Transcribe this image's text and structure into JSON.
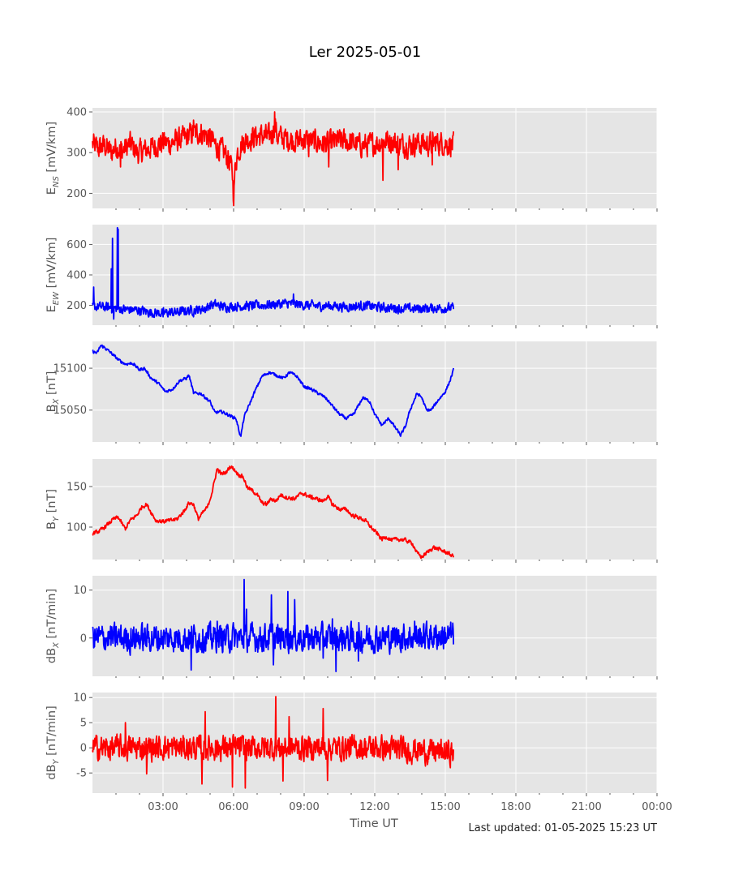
{
  "chart_data": {
    "type": "line",
    "title": "Ler 2025-05-01",
    "xlabel": "Time UT",
    "footer": "Last updated: 01-05-2025 15:23 UT",
    "x_range": [
      0,
      24
    ],
    "x_ticks": [
      {
        "h": 3,
        "label": "03:00"
      },
      {
        "h": 6,
        "label": "06:00"
      },
      {
        "h": 9,
        "label": "09:00"
      },
      {
        "h": 12,
        "label": "12:00"
      },
      {
        "h": 15,
        "label": "15:00"
      },
      {
        "h": 18,
        "label": "18:00"
      },
      {
        "h": 21,
        "label": "21:00"
      },
      {
        "h": 24,
        "label": "00:00"
      }
    ],
    "minor_ticks": [
      1,
      2,
      4,
      5,
      7,
      8,
      10,
      11,
      13,
      14,
      16,
      17,
      19,
      20,
      22,
      23
    ],
    "grid": true,
    "panels": [
      {
        "ylabel_main": "E",
        "ylabel_sub": "NS",
        "ylabel_unit": " [mV/km]",
        "color": "#ff0000",
        "ylim": [
          163,
          410
        ],
        "yticks": [
          200,
          300,
          400
        ],
        "points": [
          [
            0,
            320
          ],
          [
            0.3,
            310
          ],
          [
            0.5,
            318
          ],
          [
            0.8,
            300
          ],
          [
            1.0,
            315
          ],
          [
            1.3,
            305
          ],
          [
            1.6,
            322
          ],
          [
            1.9,
            300
          ],
          [
            2.2,
            305
          ],
          [
            2.6,
            315
          ],
          [
            3.0,
            325
          ],
          [
            3.3,
            322
          ],
          [
            3.6,
            330
          ],
          [
            3.9,
            335
          ],
          [
            4.2,
            345
          ],
          [
            4.5,
            350
          ],
          [
            4.8,
            345
          ],
          [
            5.0,
            335
          ],
          [
            5.2,
            320
          ],
          [
            5.4,
            310
          ],
          [
            5.6,
            300
          ],
          [
            5.8,
            285
          ],
          [
            5.95,
            250
          ],
          [
            6.0,
            185
          ],
          [
            6.05,
            250
          ],
          [
            6.15,
            300
          ],
          [
            6.4,
            325
          ],
          [
            6.8,
            338
          ],
          [
            7.2,
            342
          ],
          [
            7.5,
            338
          ],
          [
            7.65,
            345
          ],
          [
            7.75,
            375
          ],
          [
            7.85,
            340
          ],
          [
            8.2,
            335
          ],
          [
            8.6,
            330
          ],
          [
            9.0,
            332
          ],
          [
            9.4,
            328
          ],
          [
            9.8,
            322
          ],
          [
            10.2,
            325
          ],
          [
            10.6,
            330
          ],
          [
            11.0,
            325
          ],
          [
            11.4,
            318
          ],
          [
            11.8,
            320
          ],
          [
            12.2,
            325
          ],
          [
            12.6,
            330
          ],
          [
            13.0,
            322
          ],
          [
            13.4,
            318
          ],
          [
            13.8,
            324
          ],
          [
            14.2,
            320
          ],
          [
            14.6,
            325
          ],
          [
            15.0,
            322
          ],
          [
            15.35,
            320
          ]
        ],
        "noise": 26,
        "spikes": [
          [
            7.75,
            400
          ],
          [
            6.0,
            170
          ],
          [
            12.35,
            232
          ],
          [
            10.05,
            265
          ],
          [
            13.0,
            258
          ],
          [
            1.2,
            265
          ],
          [
            5.75,
            262
          ],
          [
            4.3,
            380
          ],
          [
            14.45,
            270
          ],
          [
            9.2,
            290
          ]
        ]
      },
      {
        "ylabel_main": "E",
        "ylabel_sub": "EW",
        "ylabel_unit": " [mV/km]",
        "color": "#0000ff",
        "ylim": [
          70,
          730
        ],
        "yticks": [
          200,
          400,
          600
        ],
        "points": [
          [
            0,
            190
          ],
          [
            0.4,
            190
          ],
          [
            0.8,
            185
          ],
          [
            1.0,
            180
          ],
          [
            1.3,
            175
          ],
          [
            1.6,
            172
          ],
          [
            2.0,
            168
          ],
          [
            2.4,
            155
          ],
          [
            2.8,
            150
          ],
          [
            3.2,
            152
          ],
          [
            3.6,
            155
          ],
          [
            4.0,
            165
          ],
          [
            4.4,
            170
          ],
          [
            4.8,
            180
          ],
          [
            5.0,
            200
          ],
          [
            5.2,
            205
          ],
          [
            5.6,
            190
          ],
          [
            6.0,
            195
          ],
          [
            6.4,
            195
          ],
          [
            6.8,
            198
          ],
          [
            7.2,
            200
          ],
          [
            7.6,
            205
          ],
          [
            8.0,
            210
          ],
          [
            8.4,
            212
          ],
          [
            8.8,
            205
          ],
          [
            9.2,
            200
          ],
          [
            9.6,
            195
          ],
          [
            10.0,
            198
          ],
          [
            10.4,
            195
          ],
          [
            10.8,
            190
          ],
          [
            11.2,
            195
          ],
          [
            11.6,
            198
          ],
          [
            12.0,
            190
          ],
          [
            12.4,
            185
          ],
          [
            12.8,
            182
          ],
          [
            13.2,
            180
          ],
          [
            13.6,
            178
          ],
          [
            14.0,
            180
          ],
          [
            14.4,
            182
          ],
          [
            14.8,
            182
          ],
          [
            15.35,
            183
          ]
        ],
        "noise": 28,
        "spikes": [
          [
            0.05,
            320
          ],
          [
            0.8,
            440
          ],
          [
            0.85,
            640
          ],
          [
            0.9,
            110
          ],
          [
            1.05,
            710
          ],
          [
            1.1,
            700
          ],
          [
            4.3,
            125
          ],
          [
            8.55,
            275
          ],
          [
            3.0,
            125
          ]
        ]
      },
      {
        "ylabel_main": "B",
        "ylabel_sub": "X",
        "ylabel_unit": " [nT]",
        "color": "#0000ff",
        "ylim": [
          15012,
          15132
        ],
        "yticks": [
          15050,
          15100
        ],
        "points": [
          [
            0,
            15120
          ],
          [
            0.2,
            15118
          ],
          [
            0.35,
            15127
          ],
          [
            0.5,
            15125
          ],
          [
            0.8,
            15118
          ],
          [
            1.1,
            15110
          ],
          [
            1.4,
            15105
          ],
          [
            1.7,
            15106
          ],
          [
            2.0,
            15098
          ],
          [
            2.2,
            15100
          ],
          [
            2.5,
            15088
          ],
          [
            2.8,
            15082
          ],
          [
            3.1,
            15072
          ],
          [
            3.4,
            15075
          ],
          [
            3.7,
            15085
          ],
          [
            4.0,
            15088
          ],
          [
            4.1,
            15092
          ],
          [
            4.3,
            15070
          ],
          [
            4.6,
            15070
          ],
          [
            5.0,
            15060
          ],
          [
            5.2,
            15047
          ],
          [
            5.5,
            15048
          ],
          [
            5.8,
            15044
          ],
          [
            6.1,
            15040
          ],
          [
            6.3,
            15018
          ],
          [
            6.45,
            15042
          ],
          [
            6.6,
            15052
          ],
          [
            6.9,
            15072
          ],
          [
            7.2,
            15090
          ],
          [
            7.5,
            15095
          ],
          [
            7.8,
            15092
          ],
          [
            8.1,
            15088
          ],
          [
            8.4,
            15095
          ],
          [
            8.7,
            15090
          ],
          [
            9.0,
            15078
          ],
          [
            9.3,
            15075
          ],
          [
            9.6,
            15070
          ],
          [
            9.9,
            15065
          ],
          [
            10.2,
            15055
          ],
          [
            10.5,
            15045
          ],
          [
            10.8,
            15040
          ],
          [
            11.1,
            15045
          ],
          [
            11.3,
            15055
          ],
          [
            11.5,
            15065
          ],
          [
            11.8,
            15060
          ],
          [
            12.0,
            15045
          ],
          [
            12.3,
            15032
          ],
          [
            12.6,
            15040
          ],
          [
            12.9,
            15028
          ],
          [
            13.1,
            15020
          ],
          [
            13.3,
            15030
          ],
          [
            13.5,
            15050
          ],
          [
            13.8,
            15070
          ],
          [
            14.0,
            15065
          ],
          [
            14.2,
            15050
          ],
          [
            14.4,
            15050
          ],
          [
            14.7,
            15062
          ],
          [
            15.0,
            15072
          ],
          [
            15.2,
            15085
          ],
          [
            15.35,
            15098
          ]
        ],
        "noise": 1.6,
        "spikes": []
      },
      {
        "ylabel_main": "B",
        "ylabel_sub": "Y",
        "ylabel_unit": " [nT]",
        "color": "#ff0000",
        "ylim": [
          60,
          184
        ],
        "yticks": [
          100,
          150
        ],
        "points": [
          [
            0,
            92
          ],
          [
            0.3,
            95
          ],
          [
            0.6,
            102
          ],
          [
            0.9,
            110
          ],
          [
            1.1,
            112
          ],
          [
            1.3,
            102
          ],
          [
            1.4,
            98
          ],
          [
            1.6,
            108
          ],
          [
            1.9,
            115
          ],
          [
            2.1,
            125
          ],
          [
            2.3,
            128
          ],
          [
            2.5,
            118
          ],
          [
            2.7,
            108
          ],
          [
            3.0,
            107
          ],
          [
            3.3,
            108
          ],
          [
            3.6,
            110
          ],
          [
            3.9,
            120
          ],
          [
            4.1,
            130
          ],
          [
            4.3,
            128
          ],
          [
            4.5,
            110
          ],
          [
            4.7,
            118
          ],
          [
            4.9,
            125
          ],
          [
            5.1,
            145
          ],
          [
            5.3,
            172
          ],
          [
            5.5,
            165
          ],
          [
            5.7,
            168
          ],
          [
            5.85,
            175
          ],
          [
            6.0,
            172
          ],
          [
            6.2,
            165
          ],
          [
            6.4,
            162
          ],
          [
            6.6,
            148
          ],
          [
            6.8,
            145
          ],
          [
            7.0,
            140
          ],
          [
            7.2,
            130
          ],
          [
            7.4,
            128
          ],
          [
            7.6,
            135
          ],
          [
            7.8,
            132
          ],
          [
            8.0,
            140
          ],
          [
            8.3,
            136
          ],
          [
            8.6,
            135
          ],
          [
            8.9,
            142
          ],
          [
            9.2,
            138
          ],
          [
            9.5,
            135
          ],
          [
            9.8,
            132
          ],
          [
            10.0,
            138
          ],
          [
            10.2,
            128
          ],
          [
            10.5,
            122
          ],
          [
            10.8,
            122
          ],
          [
            11.0,
            115
          ],
          [
            11.3,
            112
          ],
          [
            11.6,
            108
          ],
          [
            11.9,
            98
          ],
          [
            12.1,
            92
          ],
          [
            12.3,
            85
          ],
          [
            12.5,
            88
          ],
          [
            12.7,
            84
          ],
          [
            13.0,
            85
          ],
          [
            13.3,
            84
          ],
          [
            13.6,
            80
          ],
          [
            13.8,
            68
          ],
          [
            14.0,
            63
          ],
          [
            14.2,
            68
          ],
          [
            14.5,
            75
          ],
          [
            14.8,
            72
          ],
          [
            15.1,
            68
          ],
          [
            15.35,
            64
          ]
        ],
        "noise": 2.2,
        "spikes": []
      },
      {
        "ylabel_main": "dB",
        "ylabel_sub": "X",
        "ylabel_unit": " [nT/min]",
        "color": "#0000ff",
        "ylim": [
          -8,
          13
        ],
        "yticks": [
          0,
          10
        ],
        "points": [
          [
            0,
            0
          ],
          [
            3,
            0
          ],
          [
            6,
            0
          ],
          [
            9,
            0
          ],
          [
            12,
            0
          ],
          [
            15.35,
            0.5
          ]
        ],
        "noise": 2.6,
        "spikes": [
          [
            6.45,
            12.2
          ],
          [
            6.55,
            6
          ],
          [
            7.6,
            9
          ],
          [
            8.3,
            9.7
          ],
          [
            8.6,
            8
          ],
          [
            10.35,
            -7
          ],
          [
            4.2,
            -6.7
          ],
          [
            1.6,
            -3.6
          ],
          [
            7.7,
            -5.6
          ],
          [
            10.2,
            4
          ],
          [
            5.3,
            3.5
          ],
          [
            13.7,
            3.5
          ],
          [
            11.3,
            -4.8
          ],
          [
            9.8,
            -4.2
          ]
        ]
      },
      {
        "ylabel_main": "dB",
        "ylabel_sub": "Y",
        "ylabel_unit": " [nT/min]",
        "color": "#ff0000",
        "ylim": [
          -9,
          11
        ],
        "yticks": [
          -5,
          0,
          5,
          10
        ],
        "points": [
          [
            0,
            0
          ],
          [
            3,
            0
          ],
          [
            6,
            0
          ],
          [
            9,
            0
          ],
          [
            12,
            0
          ],
          [
            15.35,
            -1
          ]
        ],
        "noise": 2.2,
        "spikes": [
          [
            7.8,
            10.2
          ],
          [
            9.8,
            7.8
          ],
          [
            4.8,
            7.2
          ],
          [
            6.5,
            -8
          ],
          [
            8.35,
            6.2
          ],
          [
            4.65,
            -7.2
          ],
          [
            5.95,
            -7.8
          ],
          [
            10.0,
            -6.5
          ],
          [
            8.1,
            -6.6
          ],
          [
            2.3,
            -5.2
          ],
          [
            1.4,
            5
          ]
        ]
      }
    ]
  }
}
